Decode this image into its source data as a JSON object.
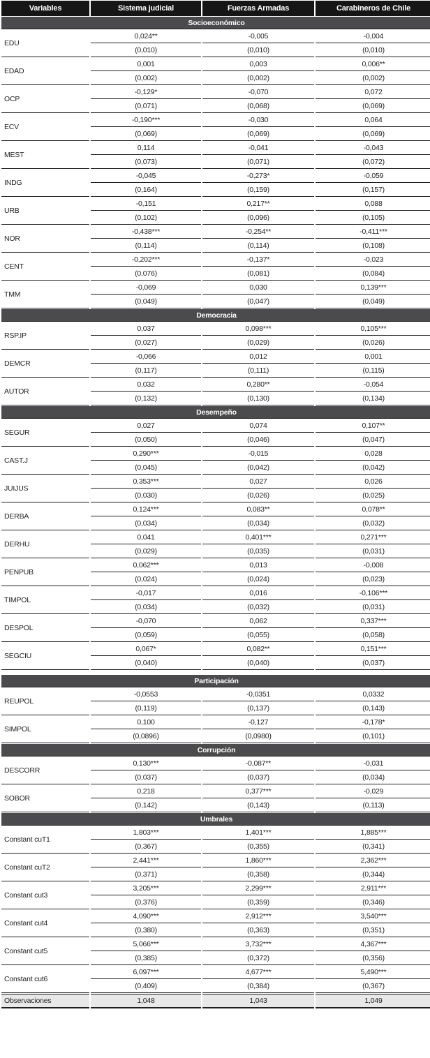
{
  "colors": {
    "header_bg": "#161616",
    "section_bg": "#4b4b4d",
    "footer_bg": "#e8e8e8",
    "border": "#1f1f1f",
    "text": "#1f1f1f"
  },
  "table": {
    "columns": [
      "Variables",
      "Sistema judicial",
      "Fuerzas Armadas",
      "Carabineros de Chile"
    ],
    "sections": [
      {
        "title": "Socioeconómico",
        "spacer_above": false,
        "rows": [
          {
            "var": "EDU",
            "coef": [
              "0,024**",
              "-0,005",
              "-0,004"
            ],
            "se": [
              "(0,010)",
              "(0,010)",
              "(0,010)"
            ]
          },
          {
            "var": "EDAD",
            "coef": [
              "0,001",
              "0,003",
              "0,006**"
            ],
            "se": [
              "(0,002)",
              "(0,002)",
              "(0,002)"
            ]
          },
          {
            "var": "OCP",
            "coef": [
              "-0,129*",
              "-0,070",
              "0,072"
            ],
            "se": [
              "(0,071)",
              "(0,068)",
              "(0,069)"
            ]
          },
          {
            "var": "ECV",
            "coef": [
              "-0,190***",
              "-0,030",
              "0,064"
            ],
            "se": [
              "(0,069)",
              "(0,069)",
              "(0,069)"
            ]
          },
          {
            "var": "MEST",
            "coef": [
              "0,114",
              "-0,041",
              "-0,043"
            ],
            "se": [
              "(0,073)",
              "(0,071)",
              "(0,072)"
            ]
          },
          {
            "var": "INDG",
            "coef": [
              "-0,045",
              "-0,273*",
              "-0,059"
            ],
            "se": [
              "(0,164)",
              "(0,159)",
              "(0,157)"
            ]
          },
          {
            "var": "URB",
            "coef": [
              "-0,151",
              "0,217**",
              "0,088"
            ],
            "se": [
              "(0,102)",
              "(0,096)",
              "(0,105)"
            ]
          },
          {
            "var": "NOR",
            "coef": [
              "-0,438***",
              "-0,254**",
              "-0,411***"
            ],
            "se": [
              "(0,114)",
              "(0,114)",
              "(0,108)"
            ]
          },
          {
            "var": "CENT",
            "coef": [
              "-0,202***",
              "-0,137*",
              "-0,023"
            ],
            "se": [
              "(0,076)",
              "(0,081)",
              "(0,084)"
            ]
          },
          {
            "var": "TMM",
            "coef": [
              "-0,069",
              "0,030",
              "0,139***"
            ],
            "se": [
              "(0,049)",
              "(0,047)",
              "(0,049)"
            ]
          }
        ]
      },
      {
        "title": "Democracia",
        "spacer_above": false,
        "rows": [
          {
            "var": "RSP.IP",
            "coef": [
              "0,037",
              "0,098***",
              "0,105***"
            ],
            "se": [
              "(0,027)",
              "(0,029)",
              "(0,026)"
            ]
          },
          {
            "var": "DEMCR",
            "coef": [
              "-0,066",
              "0,012",
              "0,001"
            ],
            "se": [
              "(0,117)",
              "(0,111)",
              "(0,115)"
            ]
          },
          {
            "var": "AUTOR",
            "coef": [
              "0,032",
              "0,280**",
              "-0,054"
            ],
            "se": [
              "(0,132)",
              "(0,130)",
              "(0,134)"
            ]
          }
        ]
      },
      {
        "title": "Desempeño",
        "spacer_above": false,
        "rows": [
          {
            "var": "SEGUR",
            "coef": [
              "0,027",
              "0,074",
              "0,107**"
            ],
            "se": [
              "(0,050)",
              "(0,046)",
              "(0,047)"
            ]
          },
          {
            "var": "CAST.J",
            "coef": [
              "0,290***",
              "-0,015",
              "0,028"
            ],
            "se": [
              "(0,045)",
              "(0,042)",
              "(0,042)"
            ]
          },
          {
            "var": "JUIJUS",
            "coef": [
              "0,353***",
              "0,027",
              "0,026"
            ],
            "se": [
              "(0,030)",
              "(0,026)",
              "(0,025)"
            ]
          },
          {
            "var": "DERBA",
            "coef": [
              "0,124***",
              "0,083**",
              "0,078**"
            ],
            "se": [
              "(0,034)",
              "(0,034)",
              "(0,032)"
            ]
          },
          {
            "var": "DERHU",
            "coef": [
              "0,041",
              "0,401***",
              "0,271***"
            ],
            "se": [
              "(0,029)",
              "(0,035)",
              "(0,031)"
            ]
          },
          {
            "var": "PENPUB",
            "coef": [
              "0,062***",
              "0,013",
              "-0,008"
            ],
            "se": [
              "(0,024)",
              "(0,024)",
              "(0,023)"
            ]
          },
          {
            "var": "TIMPOL",
            "coef": [
              "-0,017",
              "0,016",
              "-0,106***"
            ],
            "se": [
              "(0,034)",
              "(0,032)",
              "(0,031)"
            ]
          },
          {
            "var": "DESPOL",
            "coef": [
              "-0,070",
              "0,062",
              "0,337***"
            ],
            "se": [
              "(0,059)",
              "(0,055)",
              "(0,058)"
            ]
          },
          {
            "var": "SEGCIU",
            "coef": [
              "0,067*",
              "0,082**",
              "0,151***"
            ],
            "se": [
              "(0,040)",
              "(0,040)",
              "(0,037)"
            ]
          }
        ]
      },
      {
        "title": "Participación",
        "spacer_above": true,
        "rows": [
          {
            "var": "REUPOL",
            "coef": [
              "-0,0553",
              "-0,0351",
              "0,0332"
            ],
            "se": [
              "(0,119)",
              "(0,137)",
              "(0,143)"
            ]
          },
          {
            "var": "SIMPOL",
            "coef": [
              "0,100",
              "-0,127",
              "-0,178*"
            ],
            "se": [
              "(0,0896)",
              "(0,0980)",
              "(0,101)"
            ]
          }
        ]
      },
      {
        "title": "Corrupción",
        "spacer_above": false,
        "rows": [
          {
            "var": "DESCORR",
            "coef": [
              "0,130***",
              "-0,087**",
              "-0,031"
            ],
            "se": [
              "(0,037)",
              "(0,037)",
              "(0,034)"
            ]
          },
          {
            "var": "SOBOR",
            "coef": [
              "0,218",
              "0,377***",
              "-0,029"
            ],
            "se": [
              "(0,142)",
              "(0,143)",
              "(0,113)"
            ]
          }
        ]
      },
      {
        "title": "Umbrales",
        "spacer_above": false,
        "rows": [
          {
            "var": "Constant cuT1",
            "coef": [
              "1,803***",
              "1,401***",
              "1,885***"
            ],
            "se": [
              "(0,367)",
              "(0,355)",
              "(0,341)"
            ]
          },
          {
            "var": "Constant cuT2",
            "coef": [
              "2,441***",
              "1,860***",
              "2,362***"
            ],
            "se": [
              "(0,371)",
              "(0,358)",
              "(0,344)"
            ]
          },
          {
            "var": "Constant cut3",
            "coef": [
              "3,205***",
              "2,299***",
              "2,911***"
            ],
            "se": [
              "(0,376)",
              "(0,359)",
              "(0,346)"
            ]
          },
          {
            "var": "Constant cut4",
            "coef": [
              "4,090***",
              "2,912***",
              "3,540***"
            ],
            "se": [
              "(0,380)",
              "(0,363)",
              "(0,351)"
            ]
          },
          {
            "var": "Constant cut5",
            "coef": [
              "5,066***",
              "3,732***",
              "4,367***"
            ],
            "se": [
              "(0,385)",
              "(0,372)",
              "(0,356)"
            ]
          },
          {
            "var": "Constant cut6",
            "coef": [
              "6,097***",
              "4,677***",
              "5,490***"
            ],
            "se": [
              "(0,409)",
              "(0,384)",
              "(0,367)"
            ]
          }
        ]
      }
    ],
    "footer": {
      "label": "Observaciones",
      "values": [
        "1,048",
        "1,043",
        "1,049"
      ]
    }
  }
}
